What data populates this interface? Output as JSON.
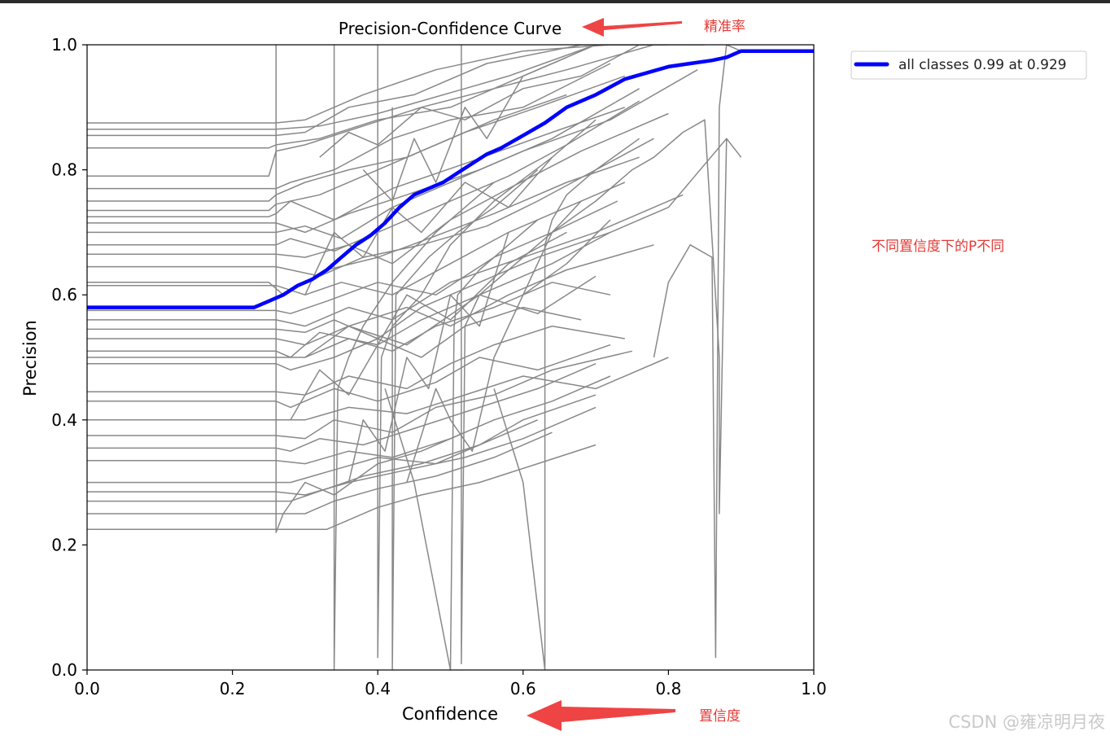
{
  "chart_data": {
    "type": "line",
    "title": "Precision-Confidence Curve",
    "xlabel": "Confidence",
    "ylabel": "Precision",
    "xlim": [
      0.0,
      1.0
    ],
    "ylim": [
      0.0,
      1.0
    ],
    "xticks": [
      "0.0",
      "0.2",
      "0.4",
      "0.6",
      "0.8",
      "1.0"
    ],
    "yticks": [
      "0.0",
      "0.2",
      "0.4",
      "0.6",
      "0.8",
      "1.0"
    ],
    "grid": false,
    "legend_position": "outside-top-right",
    "legend": [
      {
        "label": "all classes 0.99 at 0.929",
        "color": "#0000ff"
      }
    ],
    "all_classes_series": {
      "name": "all classes 0.99 at 0.929",
      "color": "#0000ff",
      "x": [
        0.0,
        0.23,
        0.25,
        0.27,
        0.29,
        0.31,
        0.33,
        0.35,
        0.37,
        0.39,
        0.41,
        0.43,
        0.45,
        0.47,
        0.49,
        0.51,
        0.53,
        0.55,
        0.57,
        0.6,
        0.63,
        0.66,
        0.7,
        0.74,
        0.77,
        0.8,
        0.83,
        0.86,
        0.88,
        0.9,
        0.93,
        1.0
      ],
      "y": [
        0.58,
        0.58,
        0.59,
        0.6,
        0.615,
        0.625,
        0.64,
        0.66,
        0.68,
        0.695,
        0.715,
        0.74,
        0.76,
        0.77,
        0.78,
        0.795,
        0.81,
        0.825,
        0.835,
        0.855,
        0.875,
        0.9,
        0.92,
        0.945,
        0.955,
        0.965,
        0.97,
        0.975,
        0.98,
        0.99,
        0.99,
        0.99
      ]
    },
    "class_series_color": "#888888",
    "class_series": [
      {
        "x": [
          0.0,
          0.26,
          0.3,
          0.38,
          0.48,
          0.6,
          0.72,
          0.8
        ],
        "y": [
          0.875,
          0.875,
          0.88,
          0.92,
          0.96,
          0.99,
          1.0,
          1.0
        ]
      },
      {
        "x": [
          0.0,
          0.26,
          0.32,
          0.4,
          0.52,
          0.58,
          0.7,
          0.85
        ],
        "y": [
          0.865,
          0.865,
          0.87,
          0.89,
          0.93,
          0.95,
          1.0,
          1.0
        ]
      },
      {
        "x": [
          0.0,
          0.26,
          0.3,
          0.36,
          0.45,
          0.55,
          0.68,
          0.78
        ],
        "y": [
          0.855,
          0.855,
          0.86,
          0.9,
          0.92,
          0.97,
          1.0,
          1.0
        ]
      },
      {
        "x": [
          0.0,
          0.25,
          0.26,
          0.32,
          0.4,
          0.5,
          0.6,
          0.7
        ],
        "y": [
          0.835,
          0.835,
          0.84,
          0.85,
          0.88,
          0.9,
          0.95,
          1.0
        ]
      },
      {
        "x": [
          0.0,
          0.25,
          0.26,
          0.3,
          0.38,
          0.46,
          0.56,
          0.66,
          0.78
        ],
        "y": [
          0.79,
          0.79,
          0.83,
          0.84,
          0.87,
          0.9,
          0.93,
          0.96,
          1.0
        ]
      },
      {
        "x": [
          0.0,
          0.26,
          0.28,
          0.34,
          0.42,
          0.5,
          0.6,
          0.72
        ],
        "y": [
          0.77,
          0.77,
          0.78,
          0.8,
          0.85,
          0.88,
          0.9,
          0.97
        ]
      },
      {
        "x": [
          0.0,
          0.25,
          0.26,
          0.3,
          0.36,
          0.44,
          0.52,
          0.62,
          0.74
        ],
        "y": [
          0.75,
          0.75,
          0.76,
          0.78,
          0.8,
          0.82,
          0.86,
          0.9,
          0.95
        ]
      },
      {
        "x": [
          0.0,
          0.25,
          0.26,
          0.32,
          0.38,
          0.46,
          0.56,
          0.66
        ],
        "y": [
          0.735,
          0.735,
          0.745,
          0.76,
          0.79,
          0.83,
          0.88,
          0.92
        ]
      },
      {
        "x": [
          0.0,
          0.25,
          0.26,
          0.28,
          0.34,
          0.42,
          0.52,
          0.64,
          0.74
        ],
        "y": [
          0.725,
          0.725,
          0.73,
          0.75,
          0.72,
          0.77,
          0.81,
          0.86,
          0.9
        ]
      },
      {
        "x": [
          0.0,
          0.26,
          0.3,
          0.36,
          0.44,
          0.54,
          0.64,
          0.76
        ],
        "y": [
          0.715,
          0.715,
          0.7,
          0.73,
          0.76,
          0.8,
          0.85,
          0.93
        ]
      },
      {
        "x": [
          0.0,
          0.26,
          0.3,
          0.35,
          0.42,
          0.5,
          0.6,
          0.72,
          0.84
        ],
        "y": [
          0.7,
          0.7,
          0.71,
          0.69,
          0.74,
          0.78,
          0.83,
          0.88,
          0.96
        ]
      },
      {
        "x": [
          0.0,
          0.26,
          0.28,
          0.34,
          0.4,
          0.48,
          0.58,
          0.66,
          0.76
        ],
        "y": [
          0.68,
          0.68,
          0.69,
          0.67,
          0.7,
          0.74,
          0.79,
          0.84,
          0.91
        ]
      },
      {
        "x": [
          0.0,
          0.26,
          0.3,
          0.36,
          0.42,
          0.5,
          0.58,
          0.68,
          0.8
        ],
        "y": [
          0.665,
          0.665,
          0.66,
          0.68,
          0.65,
          0.72,
          0.77,
          0.83,
          0.89
        ]
      },
      {
        "x": [
          0.0,
          0.26,
          0.32,
          0.38,
          0.46,
          0.55,
          0.62,
          0.7,
          0.78
        ],
        "y": [
          0.645,
          0.645,
          0.63,
          0.66,
          0.68,
          0.71,
          0.75,
          0.8,
          0.85
        ]
      },
      {
        "x": [
          0.0,
          0.25,
          0.27,
          0.33,
          0.4,
          0.47,
          0.56,
          0.66,
          0.76
        ],
        "y": [
          0.62,
          0.62,
          0.6,
          0.64,
          0.66,
          0.69,
          0.73,
          0.78,
          0.82
        ]
      },
      {
        "x": [
          0.0,
          0.26,
          0.3,
          0.35,
          0.42,
          0.5,
          0.58,
          0.66,
          0.74
        ],
        "y": [
          0.615,
          0.615,
          0.6,
          0.62,
          0.6,
          0.65,
          0.7,
          0.74,
          0.78
        ]
      },
      {
        "x": [
          0.0,
          0.26,
          0.28,
          0.33,
          0.4,
          0.48,
          0.56,
          0.64,
          0.73
        ],
        "y": [
          0.575,
          0.575,
          0.57,
          0.59,
          0.62,
          0.6,
          0.66,
          0.7,
          0.75
        ]
      },
      {
        "x": [
          0.0,
          0.26,
          0.3,
          0.36,
          0.42,
          0.5,
          0.6,
          0.7,
          0.82
        ],
        "y": [
          0.56,
          0.56,
          0.55,
          0.58,
          0.56,
          0.62,
          0.66,
          0.7,
          0.76
        ]
      },
      {
        "x": [
          0.0,
          0.26,
          0.3,
          0.34,
          0.4,
          0.46,
          0.54,
          0.62,
          0.72
        ],
        "y": [
          0.545,
          0.545,
          0.54,
          0.56,
          0.53,
          0.58,
          0.62,
          0.66,
          0.7
        ]
      },
      {
        "x": [
          0.0,
          0.26,
          0.3,
          0.36,
          0.44,
          0.5,
          0.58,
          0.66,
          0.78
        ],
        "y": [
          0.53,
          0.53,
          0.52,
          0.55,
          0.58,
          0.55,
          0.6,
          0.64,
          0.68
        ]
      },
      {
        "x": [
          0.0,
          0.26,
          0.28,
          0.32,
          0.4,
          0.46,
          0.54,
          0.62,
          0.7
        ],
        "y": [
          0.51,
          0.51,
          0.5,
          0.54,
          0.52,
          0.56,
          0.6,
          0.57,
          0.63
        ]
      },
      {
        "x": [
          0.0,
          0.26,
          0.3,
          0.36,
          0.42,
          0.48,
          0.56,
          0.64,
          0.72
        ],
        "y": [
          0.5,
          0.5,
          0.5,
          0.53,
          0.51,
          0.55,
          0.58,
          0.62,
          0.6
        ]
      },
      {
        "x": [
          0.0,
          0.26,
          0.28,
          0.34,
          0.4,
          0.46,
          0.52,
          0.6,
          0.68
        ],
        "y": [
          0.49,
          0.49,
          0.48,
          0.5,
          0.53,
          0.5,
          0.55,
          0.58,
          0.56
        ]
      },
      {
        "x": [
          0.0,
          0.26,
          0.3,
          0.36,
          0.44,
          0.5,
          0.56,
          0.64,
          0.74
        ],
        "y": [
          0.445,
          0.445,
          0.44,
          0.47,
          0.45,
          0.49,
          0.52,
          0.55,
          0.53
        ]
      },
      {
        "x": [
          0.0,
          0.26,
          0.28,
          0.34,
          0.4,
          0.48,
          0.54,
          0.62,
          0.72
        ],
        "y": [
          0.43,
          0.43,
          0.42,
          0.45,
          0.43,
          0.46,
          0.5,
          0.48,
          0.52
        ]
      },
      {
        "x": [
          0.0,
          0.26,
          0.3,
          0.36,
          0.44,
          0.52,
          0.6,
          0.7,
          0.8
        ],
        "y": [
          0.4,
          0.4,
          0.4,
          0.42,
          0.41,
          0.44,
          0.47,
          0.45,
          0.5
        ]
      },
      {
        "x": [
          0.0,
          0.26,
          0.3,
          0.34,
          0.42,
          0.48,
          0.56,
          0.64,
          0.75
        ],
        "y": [
          0.375,
          0.375,
          0.37,
          0.4,
          0.38,
          0.42,
          0.44,
          0.48,
          0.51
        ]
      },
      {
        "x": [
          0.0,
          0.26,
          0.28,
          0.32,
          0.38,
          0.46,
          0.54,
          0.62,
          0.7
        ],
        "y": [
          0.355,
          0.355,
          0.35,
          0.37,
          0.36,
          0.39,
          0.42,
          0.45,
          0.49
        ]
      },
      {
        "x": [
          0.0,
          0.26,
          0.3,
          0.36,
          0.42,
          0.5,
          0.56,
          0.64,
          0.72
        ],
        "y": [
          0.335,
          0.335,
          0.33,
          0.35,
          0.34,
          0.37,
          0.4,
          0.43,
          0.47
        ]
      },
      {
        "x": [
          0.0,
          0.26,
          0.28,
          0.34,
          0.4,
          0.48,
          0.54,
          0.6,
          0.7
        ],
        "y": [
          0.3,
          0.3,
          0.3,
          0.32,
          0.34,
          0.33,
          0.36,
          0.4,
          0.44
        ]
      },
      {
        "x": [
          0.0,
          0.26,
          0.3,
          0.36,
          0.44,
          0.52,
          0.6,
          0.7
        ],
        "y": [
          0.285,
          0.285,
          0.28,
          0.3,
          0.32,
          0.34,
          0.37,
          0.42
        ]
      },
      {
        "x": [
          0.0,
          0.26,
          0.28,
          0.33,
          0.38,
          0.46,
          0.54,
          0.62
        ],
        "y": [
          0.27,
          0.27,
          0.27,
          0.29,
          0.31,
          0.33,
          0.36,
          0.4
        ]
      },
      {
        "x": [
          0.0,
          0.26,
          0.3,
          0.34,
          0.4,
          0.48,
          0.56,
          0.64
        ],
        "y": [
          0.25,
          0.25,
          0.25,
          0.27,
          0.29,
          0.31,
          0.34,
          0.38
        ]
      },
      {
        "x": [
          0.0,
          0.26,
          0.33,
          0.36,
          0.4,
          0.46,
          0.54,
          0.62,
          0.7
        ],
        "y": [
          0.225,
          0.225,
          0.225,
          0.24,
          0.26,
          0.28,
          0.3,
          0.33,
          0.36
        ]
      },
      {
        "x": [
          0.26,
          0.26,
          0.27,
          0.3,
          0.34,
          0.4,
          0.46,
          0.52
        ],
        "y": [
          1.0,
          0.22,
          0.25,
          0.3,
          0.28,
          0.33,
          0.35,
          0.38
        ]
      },
      {
        "x": [
          0.34,
          0.34,
          0.345,
          0.36,
          0.38,
          0.42,
          0.48,
          0.56
        ],
        "y": [
          1.0,
          0.0,
          0.45,
          0.5,
          0.55,
          0.62,
          0.7,
          0.78
        ]
      },
      {
        "x": [
          0.4,
          0.4,
          0.405,
          0.42,
          0.46,
          0.5,
          0.56,
          0.64
        ],
        "y": [
          1.0,
          0.02,
          0.5,
          0.55,
          0.6,
          0.68,
          0.75,
          0.82
        ]
      },
      {
        "x": [
          0.42,
          0.42,
          0.425,
          0.44,
          0.47,
          0.51,
          0.56,
          0.62
        ],
        "y": [
          0.9,
          0.0,
          0.6,
          0.62,
          0.66,
          0.7,
          0.74,
          0.8
        ]
      },
      {
        "x": [
          0.41,
          0.45,
          0.5,
          0.505,
          0.51,
          0.54,
          0.58,
          0.62
        ],
        "y": [
          0.45,
          0.3,
          0.0,
          0.55,
          0.6,
          0.64,
          0.68,
          0.72
        ]
      },
      {
        "x": [
          0.515,
          0.515,
          0.52,
          0.54,
          0.57,
          0.6,
          0.64,
          0.68
        ],
        "y": [
          1.0,
          0.01,
          0.55,
          0.6,
          0.63,
          0.66,
          0.7,
          0.75
        ]
      },
      {
        "x": [
          0.56,
          0.6,
          0.63,
          0.63,
          0.64,
          0.66,
          0.7,
          0.76
        ],
        "y": [
          0.45,
          0.3,
          0.0,
          0.68,
          0.72,
          0.76,
          0.8,
          0.85
        ]
      },
      {
        "x": [
          0.6,
          0.64,
          0.7,
          0.75,
          0.78,
          0.82,
          0.85,
          0.87,
          0.87,
          0.88,
          0.9
        ],
        "y": [
          0.6,
          0.7,
          0.75,
          0.8,
          0.82,
          0.86,
          0.88,
          0.5,
          0.25,
          0.85,
          0.82
        ]
      },
      {
        "x": [
          0.78,
          0.8,
          0.83,
          0.86,
          0.865,
          0.87,
          0.88,
          0.9
        ],
        "y": [
          0.5,
          0.62,
          0.68,
          0.66,
          0.02,
          0.9,
          1.0,
          0.99
        ]
      },
      {
        "x": [
          0.3,
          0.36,
          0.44,
          0.54,
          0.64,
          0.72,
          0.8,
          0.88
        ],
        "y": [
          0.5,
          0.55,
          0.52,
          0.6,
          0.65,
          0.7,
          0.74,
          0.85
        ]
      },
      {
        "x": [
          0.28,
          0.32,
          0.36,
          0.4,
          0.44,
          0.5,
          0.58,
          0.66
        ],
        "y": [
          0.4,
          0.48,
          0.44,
          0.52,
          0.6,
          0.56,
          0.65,
          0.7
        ]
      },
      {
        "x": [
          0.3,
          0.34,
          0.38,
          0.42,
          0.46,
          0.52,
          0.58,
          0.64,
          0.7
        ],
        "y": [
          0.6,
          0.7,
          0.66,
          0.74,
          0.7,
          0.78,
          0.74,
          0.82,
          0.88
        ]
      },
      {
        "x": [
          0.36,
          0.38,
          0.41,
          0.44,
          0.47,
          0.5,
          0.54,
          0.58
        ],
        "y": [
          0.3,
          0.4,
          0.35,
          0.5,
          0.45,
          0.6,
          0.55,
          0.7
        ]
      },
      {
        "x": [
          0.38,
          0.42,
          0.45,
          0.48,
          0.52,
          0.55,
          0.6,
          0.66
        ],
        "y": [
          0.8,
          0.75,
          0.85,
          0.78,
          0.9,
          0.85,
          0.95,
          0.98
        ]
      },
      {
        "x": [
          0.44,
          0.48,
          0.5,
          0.53,
          0.56,
          0.6,
          0.66,
          0.72
        ],
        "y": [
          0.3,
          0.45,
          0.4,
          0.35,
          0.5,
          0.6,
          0.65,
          0.72
        ]
      },
      {
        "x": [
          0.32,
          0.36,
          0.4,
          0.46,
          0.52,
          0.6,
          0.68,
          0.76
        ],
        "y": [
          0.82,
          0.86,
          0.84,
          0.9,
          0.88,
          0.93,
          0.95,
          1.0
        ]
      }
    ]
  },
  "annotations": {
    "precision_note": "精准率",
    "confidence_note": "置信度",
    "side_note": "不同置信度下的P不同"
  },
  "watermark": "CSDN @雍凉明月夜"
}
